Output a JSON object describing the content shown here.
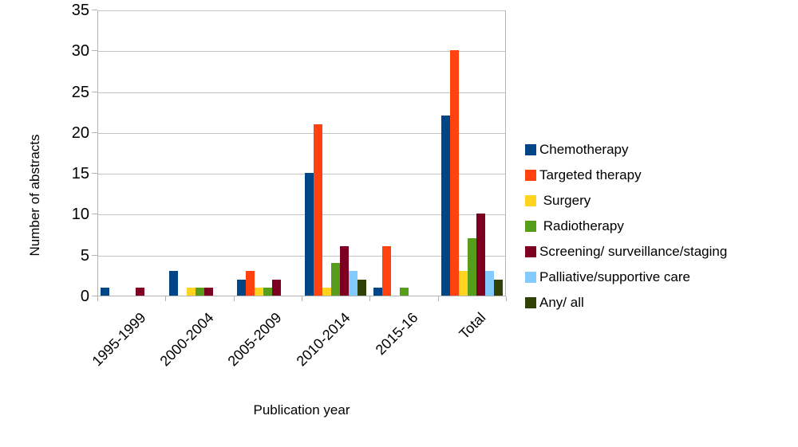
{
  "figure": {
    "background": "#ffffff",
    "grid_color": "#c3c3c3",
    "axis_color": "#b3b3b3",
    "text_color": "#000000"
  },
  "chart_data": {
    "type": "bar",
    "title": "",
    "xlabel": "Publication year",
    "ylabel": "Number of abstracts",
    "categories": [
      "1995-1999",
      "2000-2004",
      "2005-2009",
      "2010-2014",
      "2015-16",
      "Total"
    ],
    "series": [
      {
        "name": "Chemotherapy",
        "color": "#004586",
        "values": [
          1,
          3,
          2,
          15,
          1,
          22
        ]
      },
      {
        "name": "Targeted therapy",
        "color": "#ff420e",
        "values": [
          0,
          0,
          3,
          21,
          6,
          30
        ]
      },
      {
        "name": " Surgery",
        "color": "#ffd320",
        "values": [
          0,
          1,
          1,
          1,
          0,
          3
        ]
      },
      {
        "name": " Radiotherapy",
        "color": "#579d1c",
        "values": [
          0,
          1,
          1,
          4,
          1,
          7
        ]
      },
      {
        "name": "Screening/ surveillance/staging",
        "color": "#7e0021",
        "values": [
          1,
          1,
          2,
          6,
          0,
          10
        ]
      },
      {
        "name": "Palliative/supportive care",
        "color": "#83caff",
        "values": [
          0,
          0,
          0,
          3,
          0,
          3
        ]
      },
      {
        "name": "Any/ all",
        "color": "#314004",
        "values": [
          0,
          0,
          0,
          2,
          0,
          2
        ]
      }
    ],
    "ylim": [
      0,
      35
    ],
    "ytick_step": 5,
    "grid": true,
    "legend_position": "right"
  }
}
